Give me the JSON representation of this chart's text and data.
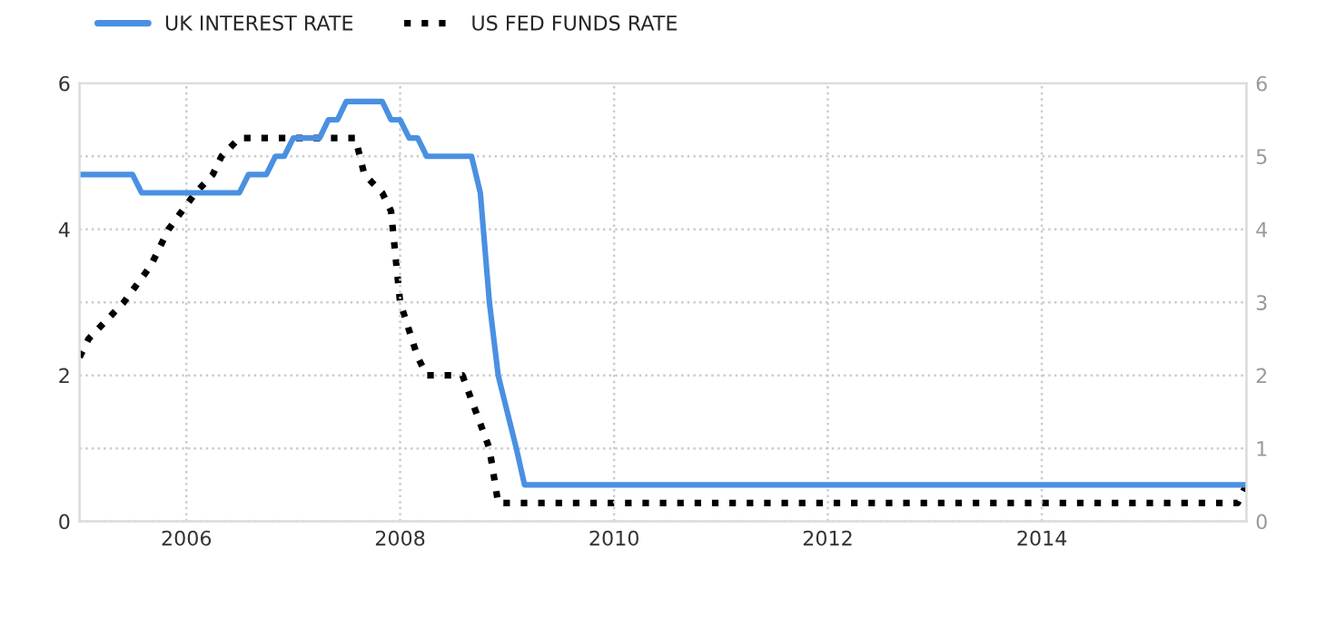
{
  "chart_data": {
    "type": "line",
    "x": [
      "2005-01",
      "2005-07",
      "2005-08",
      "2006-07",
      "2006-08",
      "2006-10",
      "2006-11",
      "2006-12",
      "2007-01",
      "2007-04",
      "2007-05",
      "2007-06",
      "2007-07",
      "2007-11",
      "2007-12",
      "2008-01",
      "2008-02",
      "2008-03",
      "2008-04",
      "2008-09",
      "2008-10",
      "2008-11",
      "2008-12",
      "2009-01",
      "2009-02",
      "2009-03",
      "2015-12"
    ],
    "series": [
      {
        "name": "UK INTEREST RATE",
        "color": "#4a90e2",
        "line_style": "solid",
        "values": [
          4.75,
          4.75,
          4.5,
          4.5,
          4.75,
          4.75,
          5.0,
          5.0,
          5.25,
          5.25,
          5.5,
          5.5,
          5.75,
          5.75,
          5.5,
          5.5,
          5.25,
          5.25,
          5.0,
          5.0,
          4.5,
          3.0,
          2.0,
          1.5,
          1.0,
          0.5,
          0.5
        ]
      },
      {
        "name": "US FED FUNDS RATE",
        "color": "#000000",
        "line_style": "dotted",
        "axis": "y2",
        "x": [
          "2005-01",
          "2005-02",
          "2005-06",
          "2005-09",
          "2005-11",
          "2006-02",
          "2006-04",
          "2006-05",
          "2006-07",
          "2007-08",
          "2007-09",
          "2007-11",
          "2007-12",
          "2008-01",
          "2008-03",
          "2008-04",
          "2008-08",
          "2008-11",
          "2008-12",
          "2015-11",
          "2015-12"
        ],
        "values": [
          2.25,
          2.5,
          3.0,
          3.5,
          4.0,
          4.5,
          4.75,
          5.0,
          5.25,
          5.25,
          4.75,
          4.5,
          4.25,
          3.0,
          2.25,
          2.0,
          2.0,
          1.0,
          0.25,
          0.25,
          0.5
        ]
      }
    ],
    "xlim": [
      "2005-01",
      "2015-12"
    ],
    "xticks": [
      "2006",
      "2008",
      "2010",
      "2012",
      "2014"
    ],
    "ylim": [
      0,
      6
    ],
    "yticks": [
      0,
      2,
      4,
      6
    ],
    "y2lim": [
      0,
      6
    ],
    "y2ticks": [
      0,
      1,
      2,
      3,
      4,
      5,
      6
    ],
    "grid": true,
    "legend": "top left",
    "marker": "none"
  }
}
